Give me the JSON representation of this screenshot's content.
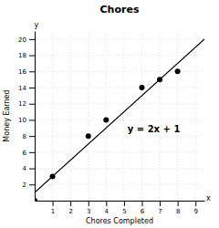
{
  "chart_data": {
    "type": "scatter",
    "title": "Chores",
    "xlabel": "Chores Completed",
    "ylabel": "Money Earned",
    "xlim": [
      0,
      9.5
    ],
    "ylim": [
      0,
      21
    ],
    "xticks": [
      1,
      2,
      3,
      4,
      5,
      6,
      7,
      8,
      9
    ],
    "yticks": [
      2,
      4,
      6,
      8,
      10,
      12,
      14,
      16,
      18,
      20
    ],
    "grid": true,
    "series": [
      {
        "type": "scatter",
        "marker": "circle",
        "color": "#000000",
        "x": [
          0,
          1,
          3,
          4,
          6,
          7,
          8
        ],
        "values": [
          0,
          3,
          8,
          10,
          14,
          15,
          16
        ]
      },
      {
        "type": "line",
        "line_style": "solid",
        "color": "#000000",
        "x": [
          0,
          9.5
        ],
        "values": [
          1,
          20
        ]
      }
    ],
    "annotations": [
      {
        "text": "y = 2x + 1",
        "x": 5.2,
        "y": 8.5
      },
      {
        "text": "x",
        "x": 9.6,
        "y": 0.3
      },
      {
        "text": "y",
        "x": 0.1,
        "y": 21.5
      }
    ]
  }
}
